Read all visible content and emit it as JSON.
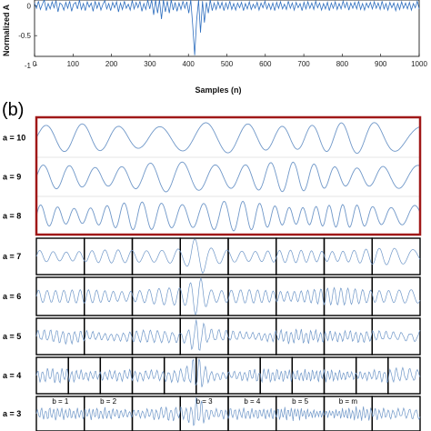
{
  "colors": {
    "signal": "#2f6fbf",
    "wavelet": "#6f97c8",
    "red_box": "#a01818",
    "frame": "#000000"
  },
  "chart_data": [
    {
      "type": "line",
      "ylabel": "Normalized A",
      "xlabel": "Samples (n)",
      "xlim": [
        0,
        1000
      ],
      "ylim": [
        -0.85,
        0.1
      ],
      "x_ticks": [
        "0",
        "100",
        "200",
        "300",
        "400",
        "500",
        "600",
        "700",
        "800",
        "900",
        "1000"
      ],
      "y_ticks": [
        "0",
        "-0.5",
        "-1"
      ],
      "y_tick_values": [
        0,
        -0.5,
        -1
      ],
      "series": [
        {
          "samples": [
            0.05,
            -0.04,
            0.08,
            -0.06,
            0.03,
            0.1,
            -0.08,
            0.04,
            -0.05,
            0.07,
            -0.03,
            0.09,
            -0.1,
            0.05,
            0.02,
            -0.07,
            0.06,
            -0.04,
            0.08,
            -0.09,
            0.03,
            0.06,
            -0.05,
            0.1,
            -0.06,
            0.04,
            -0.08,
            0.07,
            -0.02,
            0.05,
            -0.09,
            0.08,
            -0.04,
            0.06,
            -0.07,
            0.03,
            0.09,
            -0.05,
            0.04,
            -0.08,
            0.06,
            -0.03,
            0.07,
            -0.1,
            0.05,
            -0.06,
            0.08,
            -0.04,
            0.03,
            -0.07,
            0.09,
            -0.05,
            0.06,
            -0.03,
            0.08,
            -0.09,
            0.04,
            -0.06,
            0.1,
            -0.05,
            0.12,
            -0.15,
            0.18,
            -0.12,
            0.2,
            -0.22,
            0.15,
            -0.1,
            0.08,
            -0.12,
            0.1,
            -0.07,
            0.06,
            -0.09,
            0.05,
            -0.06,
            0.08,
            -0.04,
            0.07,
            -0.12,
            0.16,
            -0.32,
            -0.83,
            -0.25,
            0.1,
            -0.45,
            0.08,
            -0.28,
            0.06,
            -0.12,
            0.1,
            -0.08,
            0.05,
            -0.06,
            0.07,
            -0.04,
            0.06,
            -0.08,
            0.05,
            -0.05,
            0.08,
            -0.06,
            0.04,
            -0.07,
            0.05,
            -0.03,
            0.06,
            -0.08,
            0.04,
            -0.05,
            0.07,
            -0.06,
            0.03,
            -0.04,
            0.06,
            -0.07,
            0.05,
            -0.03,
            0.08,
            -0.05,
            0.04,
            -0.06,
            0.05,
            -0.08,
            0.06,
            -0.04,
            0.07,
            -0.05,
            0.03,
            -0.06,
            0.08,
            -0.04,
            0.05,
            -0.07,
            0.06,
            -0.03,
            0.04,
            -0.08,
            0.06,
            -0.05,
            0.07,
            -0.04,
            0.05,
            -0.06,
            0.08,
            -0.03,
            0.05,
            -0.07,
            0.04,
            -0.05,
            0.06,
            -0.08,
            0.05,
            -0.04,
            0.07,
            -0.06,
            0.04,
            -0.05,
            0.08,
            -0.03,
            0.06,
            -0.07,
            0.05,
            -0.04,
            0.06,
            -0.05,
            0.08,
            -0.06,
            0.04,
            -0.07,
            0.05,
            -0.03,
            0.06,
            -0.05,
            0.07,
            -0.04,
            0.05,
            -0.06,
            0.08,
            -0.05,
            0.04,
            -0.07,
            0.06,
            -0.03,
            0.05,
            -0.08,
            0.04,
            -0.06,
            0.07,
            -0.04,
            0.05,
            -0.05,
            0.06,
            -0.07,
            0.04,
            -0.03,
            0.08,
            -0.05
          ]
        }
      ]
    },
    {
      "type": "line",
      "panel_label": "(b)",
      "scale_rows": [
        "a = 10",
        "a = 9",
        "a = 8",
        "a = 7",
        "a = 6",
        "a = 5",
        "a = 4",
        "a = 3"
      ],
      "segments_per_row": [
        1,
        1,
        1,
        8,
        8,
        8,
        12,
        8
      ],
      "burst_center": 0.42,
      "carrier_cycles": [
        10,
        14,
        22,
        0,
        0,
        0,
        0,
        0
      ],
      "b_labels": [
        "b = 1",
        "b = 2",
        "",
        "b = 3",
        "b = 4",
        "b = 5",
        "b = m"
      ]
    }
  ]
}
